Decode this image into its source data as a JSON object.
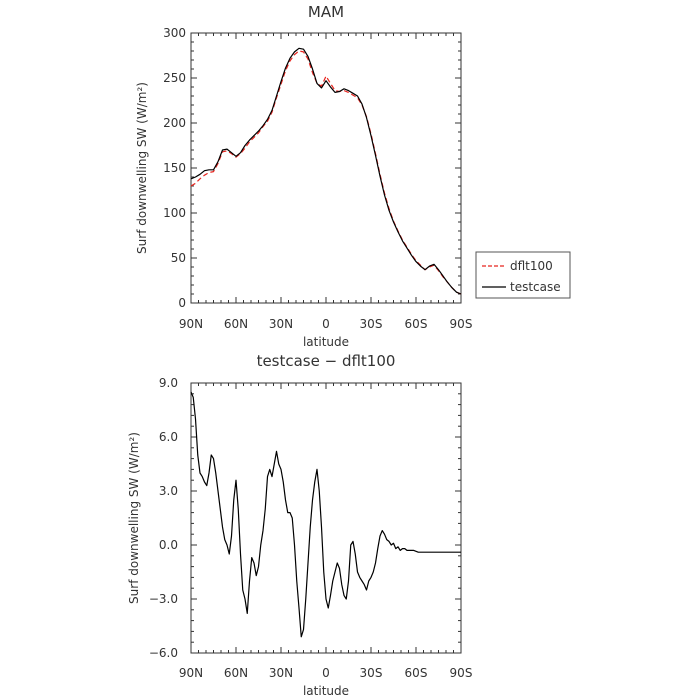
{
  "chart_data": [
    {
      "type": "line",
      "title": "MAM",
      "xlabel": "latitude",
      "ylabel": "Surf downwelling SW (W/m²)",
      "xlim": [
        90,
        -90
      ],
      "ylim": [
        0,
        300
      ],
      "xticks": [
        90,
        60,
        30,
        0,
        -30,
        -60,
        -90
      ],
      "xtick_labels": [
        "90N",
        "60N",
        "30N",
        "0",
        "30S",
        "60S",
        "90S"
      ],
      "yticks": [
        0,
        50,
        100,
        150,
        200,
        250,
        300
      ],
      "ytick_labels": [
        "0",
        "50",
        "100",
        "150",
        "200",
        "250",
        "300"
      ],
      "legend_position": "right",
      "series": [
        {
          "name": "dflt100",
          "color": "#e8251f",
          "dash": "dashed",
          "x": [
            90,
            87,
            84,
            81,
            78,
            75,
            72,
            69,
            66,
            63,
            60,
            57,
            54,
            51,
            48,
            45,
            42,
            39,
            36,
            33,
            30,
            27,
            24,
            21,
            18,
            15,
            12,
            9,
            6,
            3,
            0,
            -3,
            -6,
            -9,
            -12,
            -15,
            -18,
            -21,
            -24,
            -27,
            -30,
            -33,
            -36,
            -39,
            -42,
            -45,
            -48,
            -51,
            -54,
            -57,
            -60,
            -63,
            -66,
            -69,
            -72,
            -75,
            -78,
            -81,
            -84,
            -87,
            -90
          ],
          "y": [
            130,
            133,
            138,
            142,
            145,
            146,
            155,
            168,
            169,
            166,
            162,
            166,
            172,
            179,
            184,
            189,
            196,
            202,
            212,
            228,
            243,
            258,
            269,
            276,
            280,
            279,
            271,
            256,
            244,
            241,
            252,
            244,
            236,
            235,
            236,
            234,
            231,
            228,
            220,
            207,
            188,
            166,
            143,
            122,
            105,
            91,
            80,
            70,
            62,
            54,
            47,
            42,
            37,
            40,
            42,
            36,
            29,
            23,
            17,
            12,
            10
          ]
        },
        {
          "name": "testcase",
          "color": "#000000",
          "dash": "solid",
          "x": [
            90,
            87,
            84,
            81,
            78,
            75,
            72,
            69,
            66,
            63,
            60,
            57,
            54,
            51,
            48,
            45,
            42,
            39,
            36,
            33,
            30,
            27,
            24,
            21,
            18,
            15,
            12,
            9,
            6,
            3,
            0,
            -3,
            -6,
            -9,
            -12,
            -15,
            -18,
            -21,
            -24,
            -27,
            -30,
            -33,
            -36,
            -39,
            -42,
            -45,
            -48,
            -51,
            -54,
            -57,
            -60,
            -63,
            -66,
            -69,
            -72,
            -75,
            -78,
            -81,
            -84,
            -87,
            -90
          ],
          "y": [
            138,
            140,
            143,
            147,
            148,
            148,
            157,
            170,
            171,
            167,
            163,
            167,
            175,
            181,
            186,
            191,
            197,
            204,
            214,
            230,
            246,
            261,
            272,
            279,
            283,
            282,
            274,
            260,
            244,
            239,
            247,
            240,
            234,
            235,
            238,
            236,
            233,
            230,
            221,
            206,
            186,
            164,
            141,
            120,
            103,
            90,
            79,
            69,
            61,
            53,
            46,
            41,
            37,
            41,
            43,
            37,
            30,
            23,
            17,
            12,
            10
          ]
        }
      ]
    },
    {
      "type": "line",
      "title": "testcase − dflt100",
      "xlabel": "latitude",
      "ylabel": "Surf downwelling SW (W/m²)",
      "xlim": [
        90,
        -90
      ],
      "ylim": [
        -6,
        9
      ],
      "xticks": [
        90,
        60,
        30,
        0,
        -30,
        -60,
        -90
      ],
      "xtick_labels": [
        "90N",
        "60N",
        "30N",
        "0",
        "30S",
        "60S",
        "90S"
      ],
      "yticks": [
        -6,
        -3,
        0,
        3,
        6,
        9
      ],
      "ytick_labels": [
        "−6.0",
        "−3.0",
        "0.0",
        "3.0",
        "6.0",
        "9.0"
      ],
      "series": [
        {
          "color": "#000000",
          "dash": "solid",
          "x": [
            90,
            88.5,
            87,
            85.5,
            84,
            82.5,
            81,
            79.5,
            78,
            76.5,
            75,
            73.5,
            72,
            70.5,
            69,
            67.5,
            66,
            64.5,
            63,
            61.5,
            60,
            58.5,
            57,
            55.5,
            54,
            52.5,
            51,
            49.5,
            48,
            46.5,
            45,
            43.5,
            42,
            40.5,
            39,
            37.5,
            36,
            34.5,
            33,
            31.5,
            30,
            28.5,
            27,
            25.5,
            24,
            22.5,
            21,
            19.5,
            18,
            16.5,
            15,
            13.5,
            12,
            10.5,
            9,
            7.5,
            6,
            4.5,
            3,
            1.5,
            0,
            -1.5,
            -3,
            -4.5,
            -6,
            -7.5,
            -9,
            -10.5,
            -12,
            -13.5,
            -15,
            -16.5,
            -18,
            -19.5,
            -21,
            -22.5,
            -24,
            -25.5,
            -27,
            -28.5,
            -30,
            -31.5,
            -33,
            -34.5,
            -36,
            -37.5,
            -39,
            -40.5,
            -42,
            -43.5,
            -45,
            -46.5,
            -48,
            -49.5,
            -51,
            -52.5,
            -54,
            -55.5,
            -57,
            -58.5,
            -60,
            -61.5,
            -63,
            -64.5,
            -66,
            -67.5,
            -69,
            -70.5,
            -72,
            -73.5,
            -75,
            -76.5,
            -78,
            -79.5,
            -81,
            -82.5,
            -84,
            -85.5,
            -87,
            -88.5,
            -90
          ],
          "y": [
            8.5,
            8.2,
            7.0,
            5.0,
            4.0,
            3.8,
            3.5,
            3.3,
            4.0,
            5.0,
            4.8,
            4.0,
            3.0,
            2.0,
            1.0,
            0.3,
            0.0,
            -0.5,
            0.5,
            2.5,
            3.6,
            2.0,
            -0.5,
            -2.5,
            -3.0,
            -3.8,
            -2.0,
            -0.7,
            -1.0,
            -1.7,
            -1.2,
            0.0,
            0.8,
            2.0,
            3.8,
            4.2,
            3.8,
            4.5,
            5.2,
            4.5,
            4.2,
            3.5,
            2.5,
            1.8,
            1.8,
            1.5,
            0.0,
            -2.0,
            -3.5,
            -5.1,
            -4.7,
            -3.0,
            -1.0,
            1.0,
            2.5,
            3.5,
            4.2,
            3.0,
            1.0,
            -1.5,
            -3.0,
            -3.5,
            -2.8,
            -2.0,
            -1.5,
            -1.0,
            -1.3,
            -2.2,
            -2.8,
            -3.0,
            -2.0,
            0.0,
            0.2,
            -0.5,
            -1.5,
            -1.8,
            -2.0,
            -2.2,
            -2.5,
            -2.0,
            -1.8,
            -1.5,
            -1.0,
            -0.2,
            0.5,
            0.8,
            0.6,
            0.3,
            0.2,
            0.0,
            0.1,
            -0.2,
            -0.1,
            -0.3,
            -0.2,
            -0.2,
            -0.3,
            -0.3,
            -0.3,
            -0.3,
            -0.35,
            -0.4,
            -0.4,
            -0.4,
            -0.4,
            -0.4,
            -0.4,
            -0.4,
            -0.4,
            -0.4,
            -0.4,
            -0.4,
            -0.4,
            -0.4,
            -0.4,
            -0.4,
            -0.4,
            -0.4,
            -0.4,
            -0.4,
            -0.4
          ]
        }
      ]
    }
  ]
}
